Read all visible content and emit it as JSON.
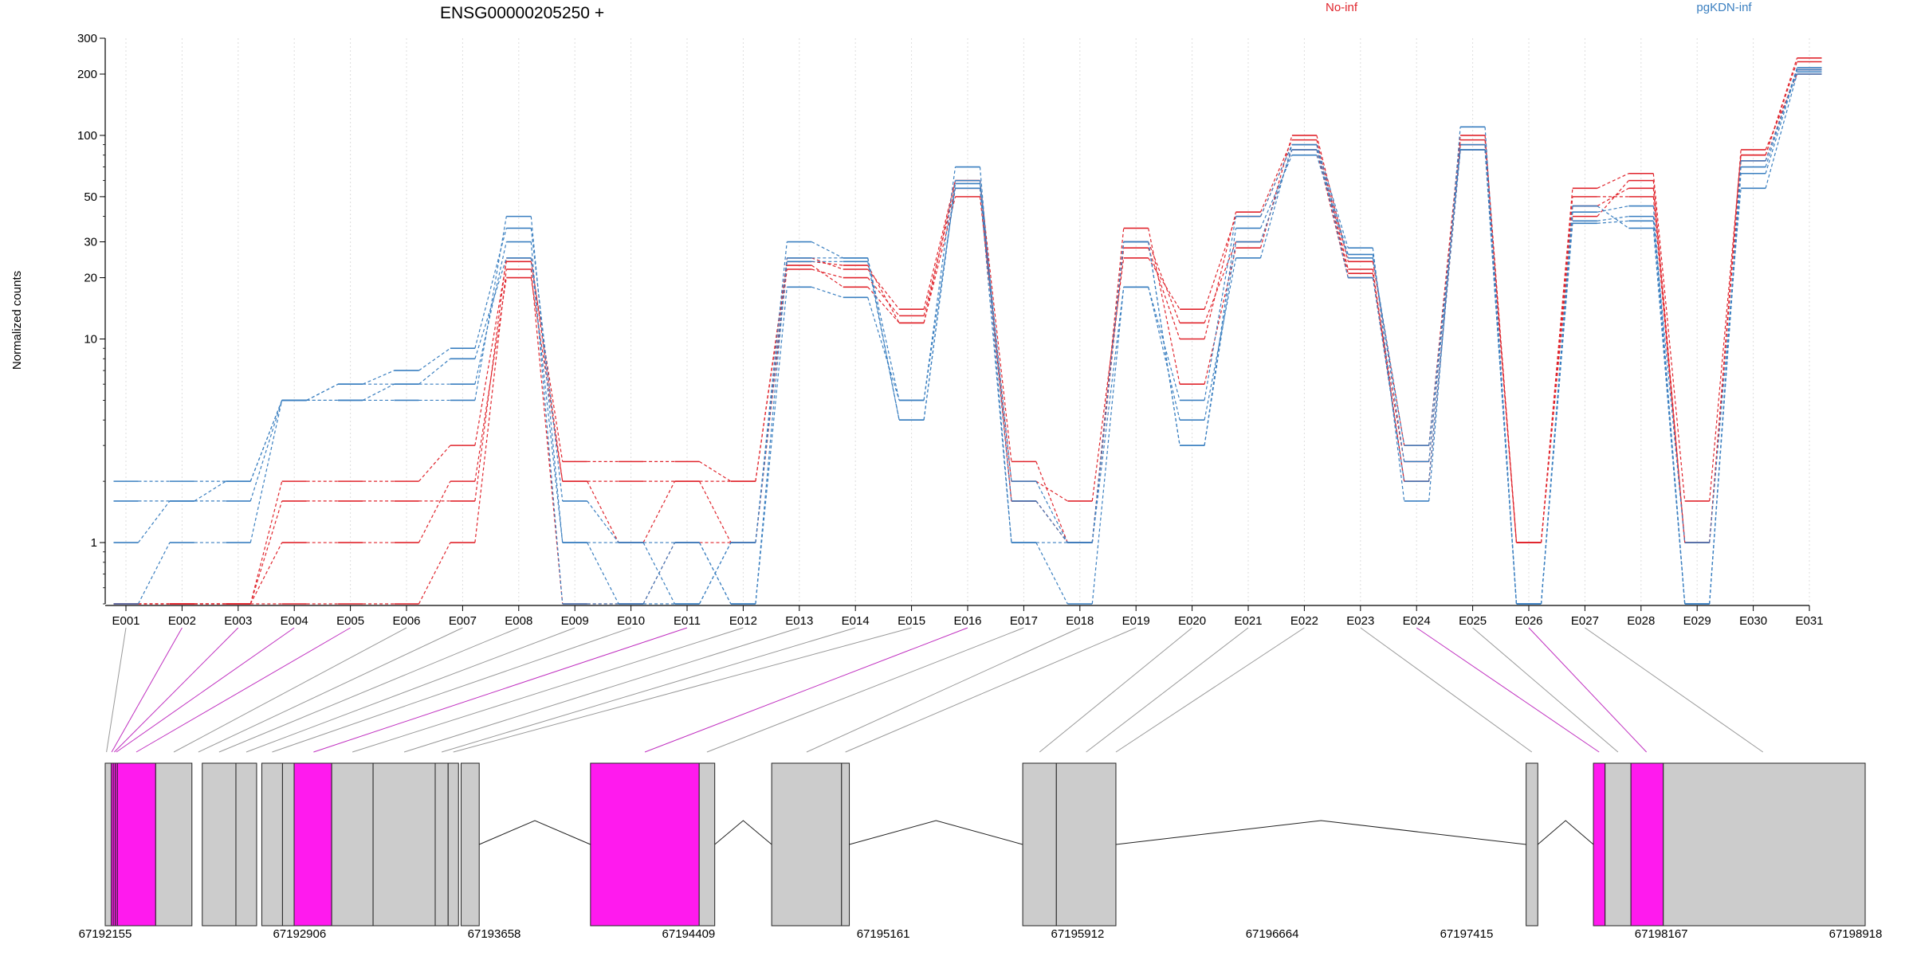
{
  "chart_data": {
    "type": "line",
    "title": "ENSG00000205250 +",
    "ylabel": "Normalized counts",
    "xlabel": "",
    "y_scale": "log",
    "ylim": [
      0.5,
      300
    ],
    "y_ticks": [
      1,
      10,
      20,
      30,
      50,
      100,
      200,
      300
    ],
    "grid": "vertical dotted",
    "legend_placement": "top",
    "categories": [
      "E001",
      "E002",
      "E003",
      "E004",
      "E005",
      "E006",
      "E007",
      "E008",
      "E009",
      "E010",
      "E011",
      "E012",
      "E013",
      "E014",
      "E015",
      "E016",
      "E017",
      "E018",
      "E019",
      "E020",
      "E021",
      "E022",
      "E023",
      "E024",
      "E025",
      "E026",
      "E027",
      "E028",
      "E029",
      "E030",
      "E031"
    ],
    "groups": [
      {
        "name": "No-inf",
        "color": "#e0242c"
      },
      {
        "name": "pgKDN-inf",
        "color": "#3a7fc0"
      }
    ],
    "series": [
      {
        "group": "No-inf",
        "values": [
          0.5,
          0.5,
          0.5,
          1,
          1,
          1,
          2,
          20,
          2,
          1,
          2,
          2,
          23,
          18,
          12,
          50,
          2,
          1.6,
          25,
          14,
          40,
          90,
          21,
          2,
          85,
          1,
          40,
          60,
          1,
          75,
          210
        ]
      },
      {
        "group": "No-inf",
        "values": [
          0.5,
          0.5,
          0.5,
          0.5,
          0.5,
          0.5,
          1,
          22,
          0.5,
          0.5,
          1,
          1,
          22,
          20,
          13,
          55,
          1.6,
          1,
          30,
          12,
          30,
          85,
          20,
          2.5,
          95,
          1,
          55,
          65,
          1.6,
          80,
          240
        ]
      },
      {
        "group": "No-inf",
        "values": [
          0.5,
          0.5,
          0.5,
          1.6,
          1.6,
          1.6,
          1.6,
          25,
          2,
          2,
          2,
          1,
          25,
          22,
          14,
          60,
          2.5,
          1,
          35,
          6,
          28,
          100,
          24,
          3,
          100,
          1,
          45,
          55,
          1,
          85,
          200
        ]
      },
      {
        "group": "No-inf",
        "values": [
          0.5,
          0.5,
          0.5,
          2,
          2,
          2,
          3,
          24,
          2.5,
          2.5,
          2.5,
          2,
          24,
          23,
          12,
          60,
          1.6,
          1,
          28,
          10,
          42,
          95,
          22,
          2,
          90,
          1,
          50,
          50,
          1,
          80,
          230
        ]
      },
      {
        "group": "pgKDN-inf",
        "values": [
          2,
          2,
          2,
          5,
          5,
          5,
          5,
          40,
          1,
          0.5,
          0.5,
          1,
          30,
          25,
          5,
          70,
          1,
          0.5,
          18,
          5,
          40,
          90,
          28,
          1.6,
          110,
          0.5,
          38,
          40,
          0.5,
          70,
          215
        ]
      },
      {
        "group": "pgKDN-inf",
        "values": [
          1.6,
          1.6,
          2,
          5,
          6,
          7,
          9,
          35,
          1.6,
          1,
          1,
          0.5,
          25,
          25,
          4,
          60,
          1.6,
          1,
          30,
          3,
          35,
          80,
          25,
          3,
          85,
          0.5,
          45,
          35,
          0.5,
          65,
          210
        ]
      },
      {
        "group": "pgKDN-inf",
        "values": [
          0.5,
          1,
          1,
          5,
          5,
          6,
          6,
          30,
          0.5,
          0.5,
          1,
          0.5,
          18,
          16,
          5,
          55,
          1,
          1,
          18,
          4,
          25,
          90,
          20,
          2,
          85,
          0.5,
          37,
          38,
          1,
          55,
          200
        ]
      },
      {
        "group": "pgKDN-inf",
        "values": [
          1,
          1.6,
          1.6,
          5,
          6,
          6,
          8,
          25,
          1,
          1,
          0.5,
          1,
          24,
          24,
          4,
          58,
          2,
          1,
          30,
          3,
          30,
          85,
          26,
          2.5,
          90,
          0.5,
          42,
          45,
          0.5,
          75,
          205
        ]
      }
    ],
    "gene_model": {
      "coordinate_ticks": [
        "67192155",
        "67192906",
        "67193658",
        "67194409",
        "67195161",
        "67195912",
        "67196664",
        "67197415",
        "67198167",
        "67198918"
      ],
      "exons": [
        {
          "id": "E001",
          "start": 67192155,
          "end": 67192178,
          "color": "#cccccc"
        },
        {
          "id": "E002",
          "start": 67192178,
          "end": 67192186,
          "color": "#ff1aee"
        },
        {
          "id": "E003",
          "start": 67192186,
          "end": 67192194,
          "color": "#ff1aee"
        },
        {
          "id": "E004",
          "start": 67192194,
          "end": 67192202,
          "color": "#ff1aee"
        },
        {
          "id": "E005",
          "start": 67192202,
          "end": 67192350,
          "color": "#ff1aee"
        },
        {
          "id": "E006",
          "start": 67192350,
          "end": 67192490,
          "color": "#cccccc"
        },
        {
          "id": "E007",
          "start": 67192530,
          "end": 67192660,
          "color": "#cccccc"
        },
        {
          "id": "E008",
          "start": 67192660,
          "end": 67192740,
          "color": "#cccccc"
        },
        {
          "id": "E009",
          "start": 67192760,
          "end": 67192840,
          "color": "#cccccc"
        },
        {
          "id": "E010",
          "start": 67192840,
          "end": 67192885,
          "color": "#cccccc"
        },
        {
          "id": "E011",
          "start": 67192885,
          "end": 67193030,
          "color": "#ff1aee"
        },
        {
          "id": "E012",
          "start": 67193030,
          "end": 67193190,
          "color": "#cccccc"
        },
        {
          "id": "E013",
          "start": 67193190,
          "end": 67193430,
          "color": "#cccccc"
        },
        {
          "id": "E014",
          "start": 67193430,
          "end": 67193480,
          "color": "#cccccc"
        },
        {
          "id": "E015",
          "start": 67193480,
          "end": 67193520,
          "color": "#cccccc"
        },
        {
          "id": "E016",
          "start": 67193530,
          "end": 67193600,
          "color": "#cccccc"
        },
        {
          "id": "E017",
          "start": 67194030,
          "end": 67194450,
          "color": "#ff1aee"
        },
        {
          "id": "E018",
          "start": 67194450,
          "end": 67194510,
          "color": "#cccccc"
        },
        {
          "id": "E019",
          "start": 67194730,
          "end": 67195000,
          "color": "#cccccc"
        },
        {
          "id": "E020",
          "start": 67195000,
          "end": 67195030,
          "color": "#cccccc"
        },
        {
          "id": "E021",
          "start": 67195700,
          "end": 67195830,
          "color": "#cccccc"
        },
        {
          "id": "E022",
          "start": 67195830,
          "end": 67196060,
          "color": "#cccccc"
        },
        {
          "id": "E023",
          "start": 67197645,
          "end": 67197690,
          "color": "#cccccc"
        },
        {
          "id": "E024",
          "start": 67197905,
          "end": 67197950,
          "color": "#ff1aee"
        },
        {
          "id": "E025",
          "start": 67197950,
          "end": 67198050,
          "color": "#cccccc"
        },
        {
          "id": "E026",
          "start": 67198050,
          "end": 67198175,
          "color": "#ff1aee"
        },
        {
          "id": "E027",
          "start": 67198175,
          "end": 67198955,
          "color": "#cccccc"
        }
      ],
      "link_targets": [
        {
          "id": "E001",
          "pos": 67192160,
          "color": "#999999"
        },
        {
          "id": "E002",
          "pos": 67192180,
          "color": "#c030c0"
        },
        {
          "id": "E003",
          "pos": 67192190,
          "color": "#c030c0"
        },
        {
          "id": "E004",
          "pos": 67192198,
          "color": "#c030c0"
        },
        {
          "id": "E005",
          "pos": 67192275,
          "color": "#c030c0"
        },
        {
          "id": "E006",
          "pos": 67192420,
          "color": "#999999"
        },
        {
          "id": "E007",
          "pos": 67192515,
          "color": "#999999"
        },
        {
          "id": "E008",
          "pos": 67192595,
          "color": "#999999"
        },
        {
          "id": "E009",
          "pos": 67192700,
          "color": "#999999"
        },
        {
          "id": "E010",
          "pos": 67192800,
          "color": "#999999"
        },
        {
          "id": "E011",
          "pos": 67192960,
          "color": "#c030c0"
        },
        {
          "id": "E012",
          "pos": 67193110,
          "color": "#999999"
        },
        {
          "id": "E013",
          "pos": 67193310,
          "color": "#999999"
        },
        {
          "id": "E014",
          "pos": 67193455,
          "color": "#999999"
        },
        {
          "id": "E015",
          "pos": 67193500,
          "color": "#999999"
        },
        {
          "id": "E016",
          "pos": 67194240,
          "color": "#c030c0"
        },
        {
          "id": "E017",
          "pos": 67194480,
          "color": "#999999"
        },
        {
          "id": "E018",
          "pos": 67194865,
          "color": "#999999"
        },
        {
          "id": "E019",
          "pos": 67195015,
          "color": "#999999"
        },
        {
          "id": "E020",
          "pos": 67195765,
          "color": "#999999"
        },
        {
          "id": "E021",
          "pos": 67195945,
          "color": "#999999"
        },
        {
          "id": "E022",
          "pos": 67196060,
          "color": "#999999"
        },
        {
          "id": "E023",
          "pos": 67197667,
          "color": "#999999"
        },
        {
          "id": "E024",
          "pos": 67197927,
          "color": "#c030c0"
        },
        {
          "id": "E025",
          "pos": 67198000,
          "color": "#999999"
        },
        {
          "id": "E026",
          "pos": 67198110,
          "color": "#c030c0"
        },
        {
          "id": "E027",
          "pos": 67198560,
          "color": "#999999"
        }
      ],
      "introns": [
        [
          67193600,
          67194030
        ],
        [
          67194510,
          67194730
        ],
        [
          67195030,
          67195700
        ],
        [
          67196060,
          67197645
        ],
        [
          67197690,
          67197905
        ]
      ]
    }
  }
}
